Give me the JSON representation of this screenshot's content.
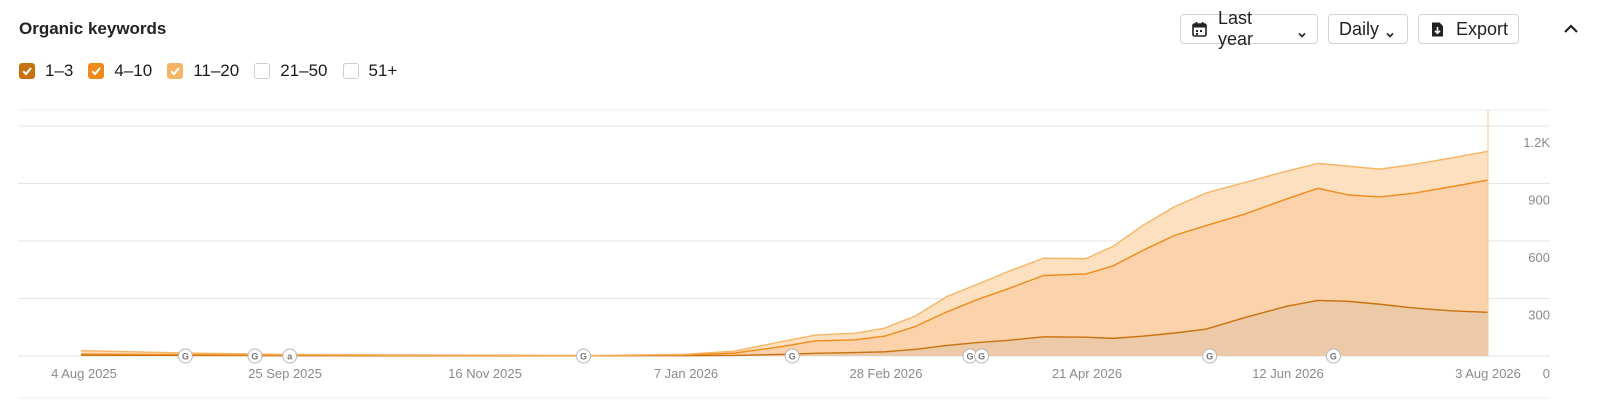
{
  "header": {
    "title": "Organic keywords",
    "period_label": "Last year",
    "granularity_label": "Daily",
    "export_label": "Export"
  },
  "legend": [
    {
      "label": "1–3",
      "checked": true,
      "color": "#c8720f"
    },
    {
      "label": "4–10",
      "checked": true,
      "color": "#ee8b1c"
    },
    {
      "label": "11–20",
      "checked": true,
      "color": "#f5b567"
    },
    {
      "label": "21–50",
      "checked": false,
      "color": "#cfcfcf"
    },
    {
      "label": "51+",
      "checked": false,
      "color": "#cfcfcf"
    }
  ],
  "icons": [
    "calendar-icon",
    "chevron-down-icon",
    "download-icon",
    "chevron-up-icon",
    "google-update-icon",
    "amazon-icon"
  ],
  "chart_data": {
    "type": "area",
    "stacked": true,
    "x_tick_labels": [
      "4 Aug 2025",
      "25 Sep 2025",
      "16 Nov 2025",
      "7 Jan 2026",
      "28 Feb 2026",
      "21 Apr 2026",
      "12 Jun 2026",
      "3 Aug 2026"
    ],
    "y_tick_labels": [
      "0",
      "300",
      "600",
      "900",
      "1.2K"
    ],
    "ylim": [
      0,
      1200
    ],
    "y_axis_position": "right",
    "grid": true,
    "x": [
      "2025-08-04",
      "2025-09-01",
      "2025-09-25",
      "2025-10-20",
      "2025-11-16",
      "2025-12-15",
      "2026-01-07",
      "2026-01-20",
      "2026-02-01",
      "2026-02-10",
      "2026-02-20",
      "2026-02-28",
      "2026-03-08",
      "2026-03-16",
      "2026-03-24",
      "2026-04-01",
      "2026-04-10",
      "2026-04-21",
      "2026-04-28",
      "2026-05-06",
      "2026-05-14",
      "2026-05-22",
      "2026-06-01",
      "2026-06-12",
      "2026-06-20",
      "2026-06-28",
      "2026-07-06",
      "2026-07-15",
      "2026-07-25",
      "2026-08-03"
    ],
    "series": [
      {
        "name": "1–3",
        "color": "#c8720f",
        "values": [
          4,
          3,
          2,
          1,
          1,
          1,
          2,
          3,
          8,
          14,
          18,
          22,
          35,
          55,
          70,
          82,
          100,
          98,
          92,
          104,
          120,
          140,
          200,
          260,
          290,
          285,
          270,
          250,
          235,
          228
        ]
      },
      {
        "name": "4–10",
        "color": "#ee8b1c",
        "values": [
          6,
          4,
          3,
          2,
          2,
          1,
          3,
          12,
          40,
          65,
          66,
          82,
          120,
          175,
          225,
          270,
          320,
          330,
          378,
          450,
          510,
          540,
          540,
          560,
          585,
          555,
          560,
          600,
          650,
          690
        ]
      },
      {
        "name": "11–20",
        "color": "#f5b567",
        "values": [
          18,
          8,
          4,
          3,
          2,
          1,
          4,
          10,
          26,
          30,
          34,
          42,
          55,
          80,
          80,
          90,
          90,
          80,
          102,
          131,
          150,
          170,
          165,
          145,
          130,
          150,
          145,
          150,
          150,
          150
        ]
      }
    ],
    "event_markers": [
      {
        "date": "2025-08-31",
        "type": "G"
      },
      {
        "date": "2025-09-18",
        "type": "G"
      },
      {
        "date": "2025-09-27",
        "type": "a"
      },
      {
        "date": "2025-12-12",
        "type": "G"
      },
      {
        "date": "2026-02-04",
        "type": "G"
      },
      {
        "date": "2026-03-22",
        "type": "G"
      },
      {
        "date": "2026-03-25",
        "type": "G"
      },
      {
        "date": "2026-05-23",
        "type": "G"
      },
      {
        "date": "2026-06-24",
        "type": "G"
      }
    ]
  }
}
